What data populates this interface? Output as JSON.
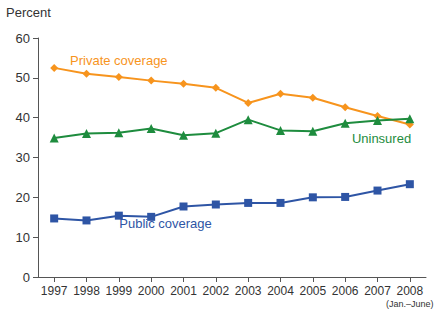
{
  "chart_data": {
    "type": "line",
    "y_label": "Percent",
    "categories": [
      "1997",
      "1998",
      "1999",
      "2000",
      "2001",
      "2002",
      "2003",
      "2004",
      "2005",
      "2006",
      "2007",
      "2008"
    ],
    "annotations": [
      {
        "text": "(Jan.–June)",
        "x": "2008"
      }
    ],
    "series": [
      {
        "name": "Private coverage",
        "color": "#f7941d",
        "marker": "diamond",
        "line_style": "solid",
        "values": [
          52.5,
          51.0,
          50.2,
          49.3,
          48.5,
          47.5,
          43.7,
          46.0,
          45.0,
          42.6,
          40.4,
          38.3
        ]
      },
      {
        "name": "Uninsured",
        "color": "#1e8c3e",
        "marker": "triangle",
        "line_style": "solid",
        "values": [
          34.9,
          36.0,
          36.2,
          37.3,
          35.6,
          36.1,
          39.5,
          36.8,
          36.6,
          38.6,
          39.3,
          39.7
        ]
      },
      {
        "name": "Public coverage",
        "color": "#2e55a5",
        "marker": "square",
        "line_style": "solid",
        "values": [
          14.7,
          14.2,
          15.4,
          15.1,
          17.7,
          18.2,
          18.6,
          18.6,
          20.0,
          20.1,
          21.7,
          23.3
        ]
      }
    ],
    "ylim": [
      0,
      60
    ],
    "yticks": [
      0,
      10,
      20,
      30,
      40,
      50,
      60
    ],
    "grid": false
  }
}
